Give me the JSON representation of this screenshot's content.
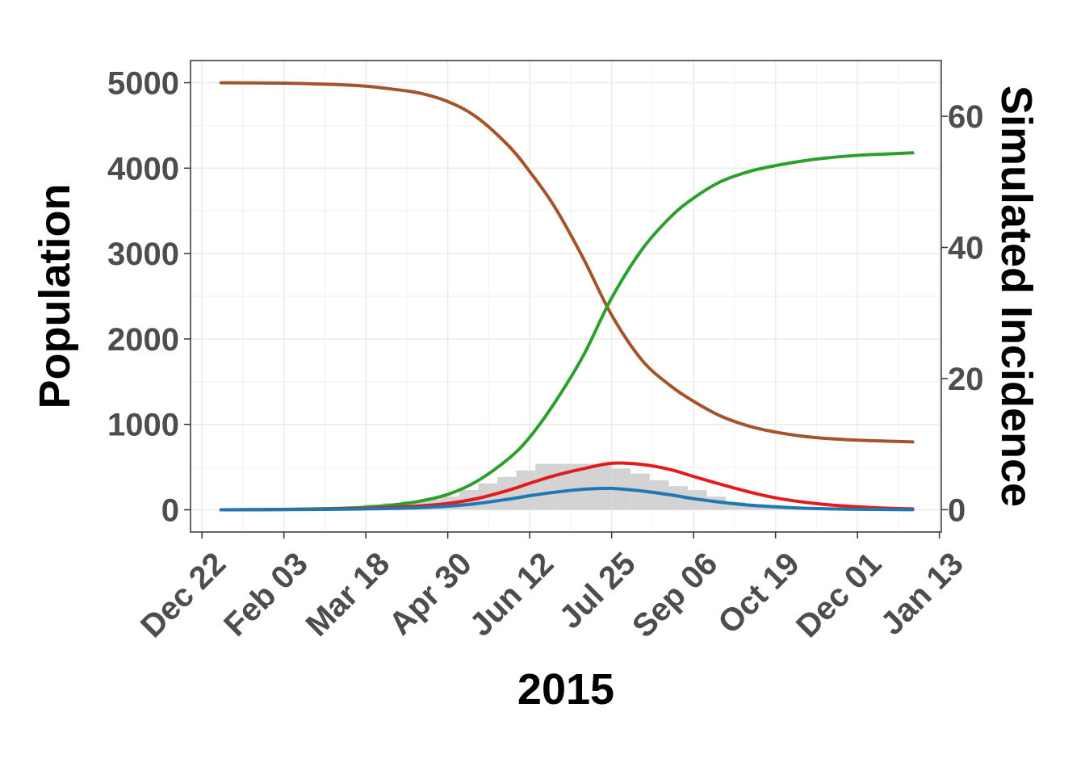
{
  "chart_data": {
    "type": "line",
    "xlabel": "2015",
    "ylabel": "Population",
    "y2label": "Simulated Incidence",
    "x_tick_labels": [
      "Dec 22",
      "Feb 03",
      "Mar 18",
      "Apr 30",
      "Jun 12",
      "Jul 25",
      "Sep 06",
      "Oct 19",
      "Dec 01",
      "Jan 13"
    ],
    "x_ticks": [
      "2014-12-22",
      "2015-02-03",
      "2015-03-18",
      "2015-04-30",
      "2015-06-12",
      "2015-07-25",
      "2015-09-06",
      "2015-10-19",
      "2015-12-01",
      "2016-01-13"
    ],
    "xlim": [
      "2014-12-16",
      "2016-01-14"
    ],
    "ylim": [
      -260,
      5260
    ],
    "y_ticks": [
      0,
      1000,
      2000,
      3000,
      4000,
      5000
    ],
    "y2lim": [
      -3.4,
      68.5
    ],
    "y2_ticks": [
      0,
      20,
      40,
      60
    ],
    "grid": true,
    "legend": "none",
    "series": [
      {
        "color": "#a6532a",
        "x": [
          "2015-01-01",
          "2015-02-03",
          "2015-03-01",
          "2015-03-18",
          "2015-04-01",
          "2015-04-15",
          "2015-04-30",
          "2015-05-15",
          "2015-06-01",
          "2015-06-12",
          "2015-06-25",
          "2015-07-10",
          "2015-07-25",
          "2015-08-10",
          "2015-08-25",
          "2015-09-06",
          "2015-09-20",
          "2015-10-05",
          "2015-10-19",
          "2015-11-01",
          "2015-11-15",
          "2015-12-01",
          "2015-12-15",
          "2015-12-30"
        ],
        "values": [
          5000,
          4995,
          4980,
          4960,
          4925,
          4880,
          4780,
          4600,
          4260,
          3960,
          3550,
          2950,
          2280,
          1750,
          1450,
          1270,
          1100,
          980,
          910,
          865,
          835,
          815,
          805,
          795
        ]
      },
      {
        "color": "#2ca02c",
        "x": [
          "2015-01-01",
          "2015-02-03",
          "2015-03-01",
          "2015-03-18",
          "2015-04-01",
          "2015-04-15",
          "2015-04-30",
          "2015-05-15",
          "2015-06-01",
          "2015-06-12",
          "2015-06-25",
          "2015-07-10",
          "2015-07-25",
          "2015-08-10",
          "2015-08-25",
          "2015-09-06",
          "2015-09-20",
          "2015-10-05",
          "2015-10-19",
          "2015-11-01",
          "2015-11-15",
          "2015-12-01",
          "2015-12-15",
          "2015-12-30"
        ],
        "values": [
          0,
          5,
          15,
          30,
          55,
          100,
          180,
          330,
          600,
          850,
          1250,
          1800,
          2480,
          3050,
          3430,
          3650,
          3840,
          3960,
          4030,
          4080,
          4120,
          4150,
          4165,
          4180
        ]
      },
      {
        "color": "#e41a1c",
        "x": [
          "2015-01-01",
          "2015-02-03",
          "2015-03-01",
          "2015-03-18",
          "2015-04-01",
          "2015-04-15",
          "2015-04-30",
          "2015-05-15",
          "2015-06-01",
          "2015-06-12",
          "2015-06-25",
          "2015-07-10",
          "2015-07-25",
          "2015-08-10",
          "2015-08-25",
          "2015-09-06",
          "2015-09-20",
          "2015-10-05",
          "2015-10-19",
          "2015-11-01",
          "2015-11-15",
          "2015-12-01",
          "2015-12-15",
          "2015-12-30"
        ],
        "values": [
          0,
          3,
          10,
          18,
          28,
          45,
          75,
          130,
          230,
          310,
          400,
          480,
          545,
          530,
          470,
          390,
          300,
          210,
          140,
          95,
          60,
          35,
          20,
          10
        ]
      },
      {
        "color": "#1f78b4",
        "x": [
          "2015-01-01",
          "2015-02-03",
          "2015-03-01",
          "2015-03-18",
          "2015-04-01",
          "2015-04-15",
          "2015-04-30",
          "2015-05-15",
          "2015-06-01",
          "2015-06-12",
          "2015-06-25",
          "2015-07-10",
          "2015-07-25",
          "2015-08-10",
          "2015-08-25",
          "2015-09-06",
          "2015-09-20",
          "2015-10-05",
          "2015-10-19",
          "2015-11-01",
          "2015-11-15",
          "2015-12-01",
          "2015-12-15",
          "2015-12-30"
        ],
        "values": [
          0,
          2,
          6,
          10,
          16,
          25,
          42,
          72,
          125,
          165,
          205,
          240,
          250,
          220,
          175,
          130,
          90,
          55,
          35,
          20,
          12,
          6,
          3,
          1
        ]
      }
    ],
    "bars": {
      "color": "#d3d3d3",
      "bin_width_days": 10,
      "x": [
        "2015-01-01",
        "2015-01-11",
        "2015-01-21",
        "2015-01-31",
        "2015-02-10",
        "2015-02-20",
        "2015-03-02",
        "2015-03-12",
        "2015-03-22",
        "2015-04-01",
        "2015-04-11",
        "2015-04-21",
        "2015-05-01",
        "2015-05-11",
        "2015-05-21",
        "2015-05-31",
        "2015-06-10",
        "2015-06-20",
        "2015-06-30",
        "2015-07-10",
        "2015-07-20",
        "2015-07-30",
        "2015-08-09",
        "2015-08-19",
        "2015-08-29",
        "2015-09-08",
        "2015-09-18",
        "2015-09-28",
        "2015-10-08",
        "2015-10-18",
        "2015-10-28",
        "2015-11-07",
        "2015-11-17",
        "2015-11-27",
        "2015-12-07",
        "2015-12-17",
        "2015-12-27"
      ],
      "values": [
        0,
        0,
        0,
        0,
        0,
        0.1,
        0.3,
        0.5,
        0.8,
        1.0,
        1.3,
        1.6,
        2.0,
        3.0,
        4.0,
        5.0,
        6.0,
        7.0,
        7.0,
        7.0,
        7.0,
        6.3,
        5.5,
        4.5,
        3.6,
        3.0,
        2.0,
        1.2,
        0.6,
        0.4,
        0.2,
        0.1,
        0.1,
        0,
        0,
        0,
        0
      ]
    }
  }
}
